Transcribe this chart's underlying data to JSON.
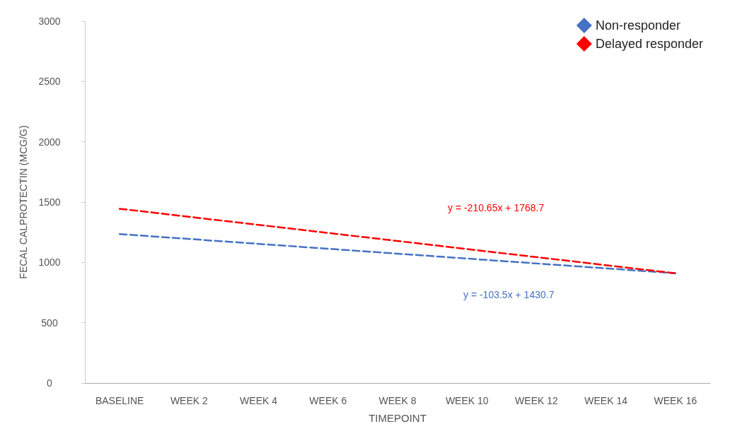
{
  "chart_data": {
    "type": "line",
    "xlabel": "TIMEPOINT",
    "ylabel": "FECAL CALPROTECTIN (MCG/G)",
    "categories": [
      "BASELINE",
      "WEEK 2",
      "WEEK 4",
      "WEEK 6",
      "WEEK 8",
      "WEEK 10",
      "WEEK 12",
      "WEEK 14",
      "WEEK 16"
    ],
    "series": [
      {
        "name": "Non-responder",
        "color": "#4472c4",
        "values": [
          1235,
          null,
          null,
          null,
          null,
          null,
          null,
          null,
          910
        ]
      },
      {
        "name": "Delayed responder",
        "color": "#ff0000",
        "values": [
          1445,
          null,
          null,
          null,
          null,
          null,
          null,
          null,
          910
        ]
      }
    ],
    "ylim": [
      0,
      3000
    ],
    "yticks": [
      0,
      500,
      1000,
      1500,
      2000,
      2500,
      3000
    ],
    "grid": false,
    "legend": "top right",
    "line_style": "dashed",
    "annotations": [
      "y = -210.65x + 1768.7",
      "y = -103.5x + 1430.7"
    ]
  }
}
